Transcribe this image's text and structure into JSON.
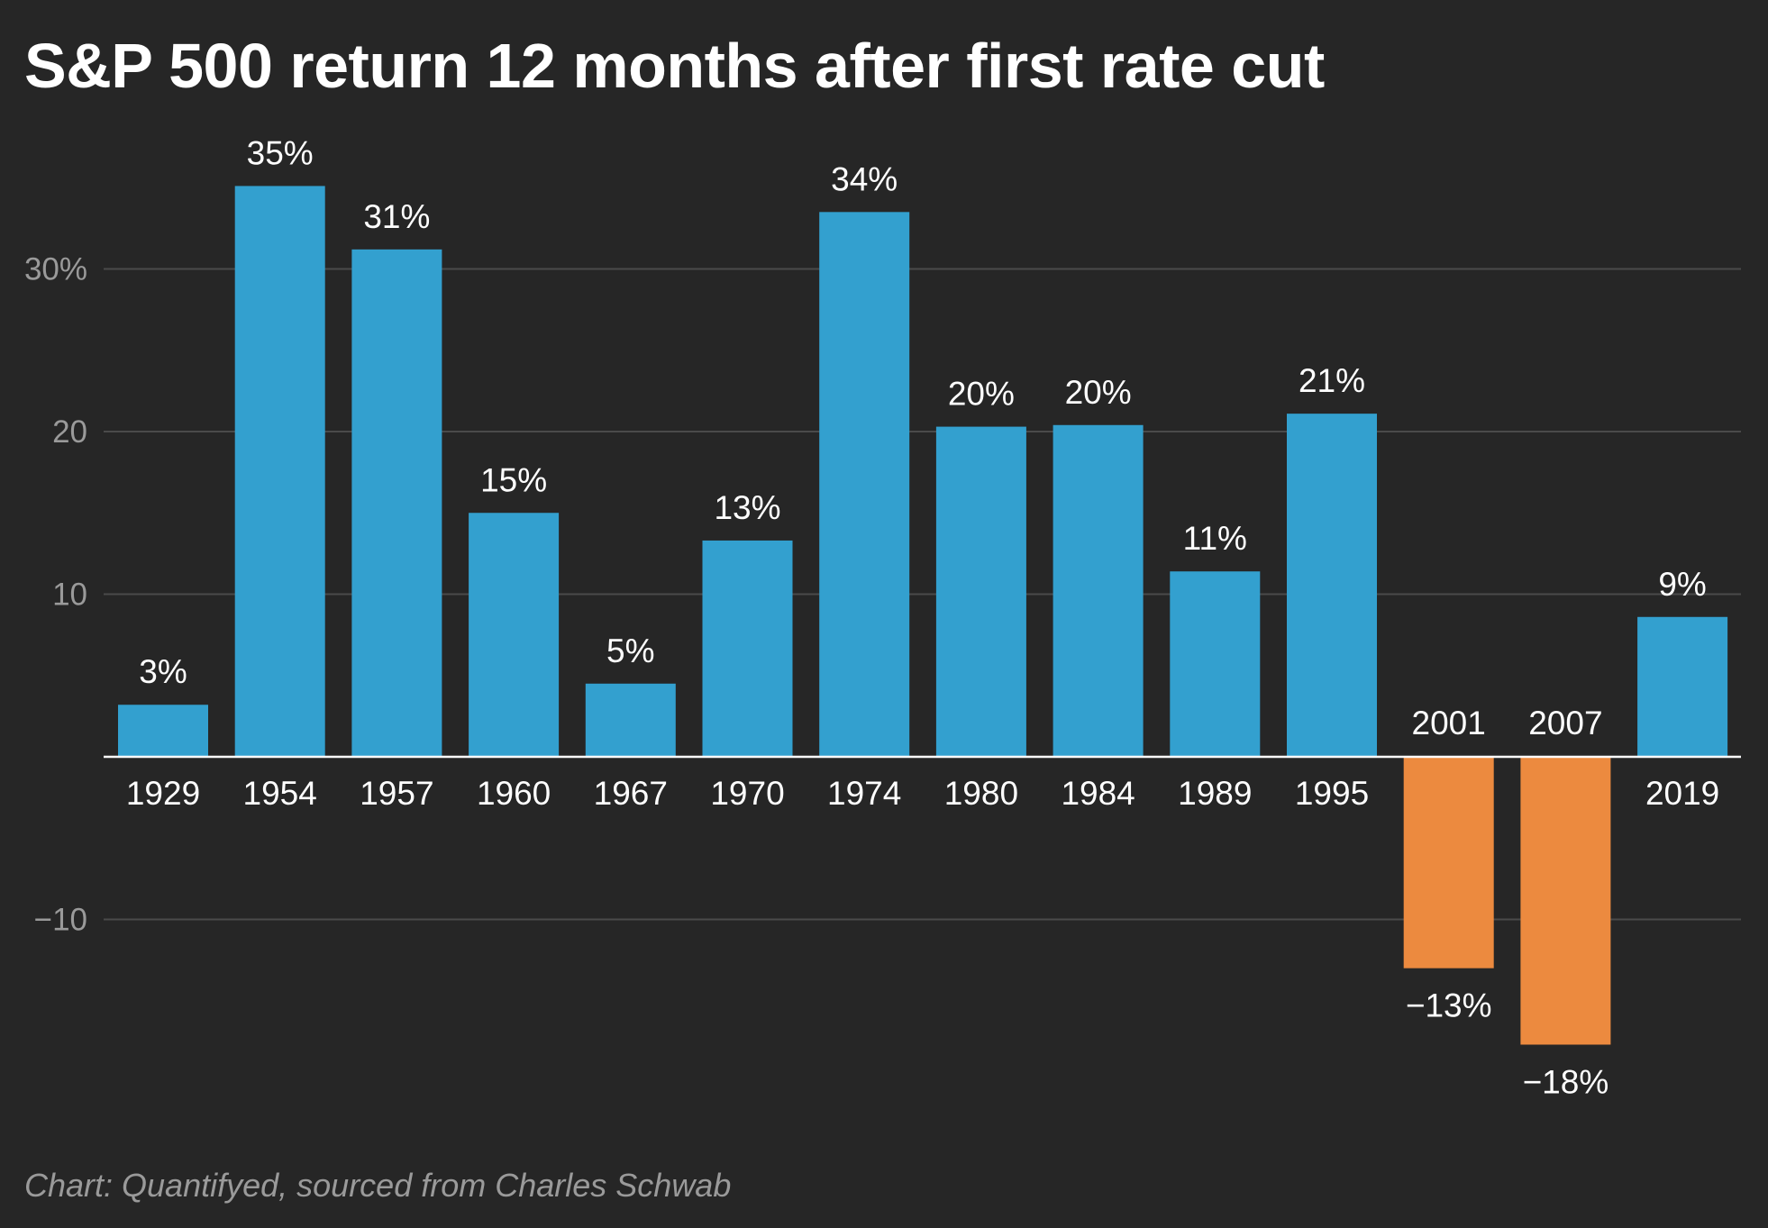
{
  "chart_data": {
    "type": "bar",
    "title": "S&P 500 return 12 months after first rate cut",
    "source": "Chart: Quantifyed, sourced from Charles Schwab",
    "categories": [
      "1929",
      "1954",
      "1957",
      "1960",
      "1967",
      "1970",
      "1974",
      "1980",
      "1984",
      "1989",
      "1995",
      "2001",
      "2007",
      "2019"
    ],
    "values": [
      3.2,
      35.1,
      31.2,
      15.0,
      4.5,
      13.3,
      33.5,
      20.3,
      20.4,
      11.4,
      21.1,
      -13.0,
      -17.7,
      8.6
    ],
    "data_labels": [
      "3%",
      "35%",
      "31%",
      "15%",
      "5%",
      "13%",
      "34%",
      "20%",
      "20%",
      "11%",
      "21%",
      "−13%",
      "−18%",
      "9%"
    ],
    "y_ticks": [
      {
        "value": 30,
        "label": "30%"
      },
      {
        "value": 20,
        "label": "20"
      },
      {
        "value": 10,
        "label": "10"
      },
      {
        "value": -10,
        "label": "−10"
      }
    ],
    "ylim": [
      -22,
      38
    ],
    "grid": true,
    "xlabel": "",
    "ylabel": "",
    "colors": {
      "positive": "#33a0cf",
      "negative": "#ec8a3f",
      "background": "#262626",
      "grid": "#4a4a4a",
      "baseline": "#ffffff"
    }
  }
}
